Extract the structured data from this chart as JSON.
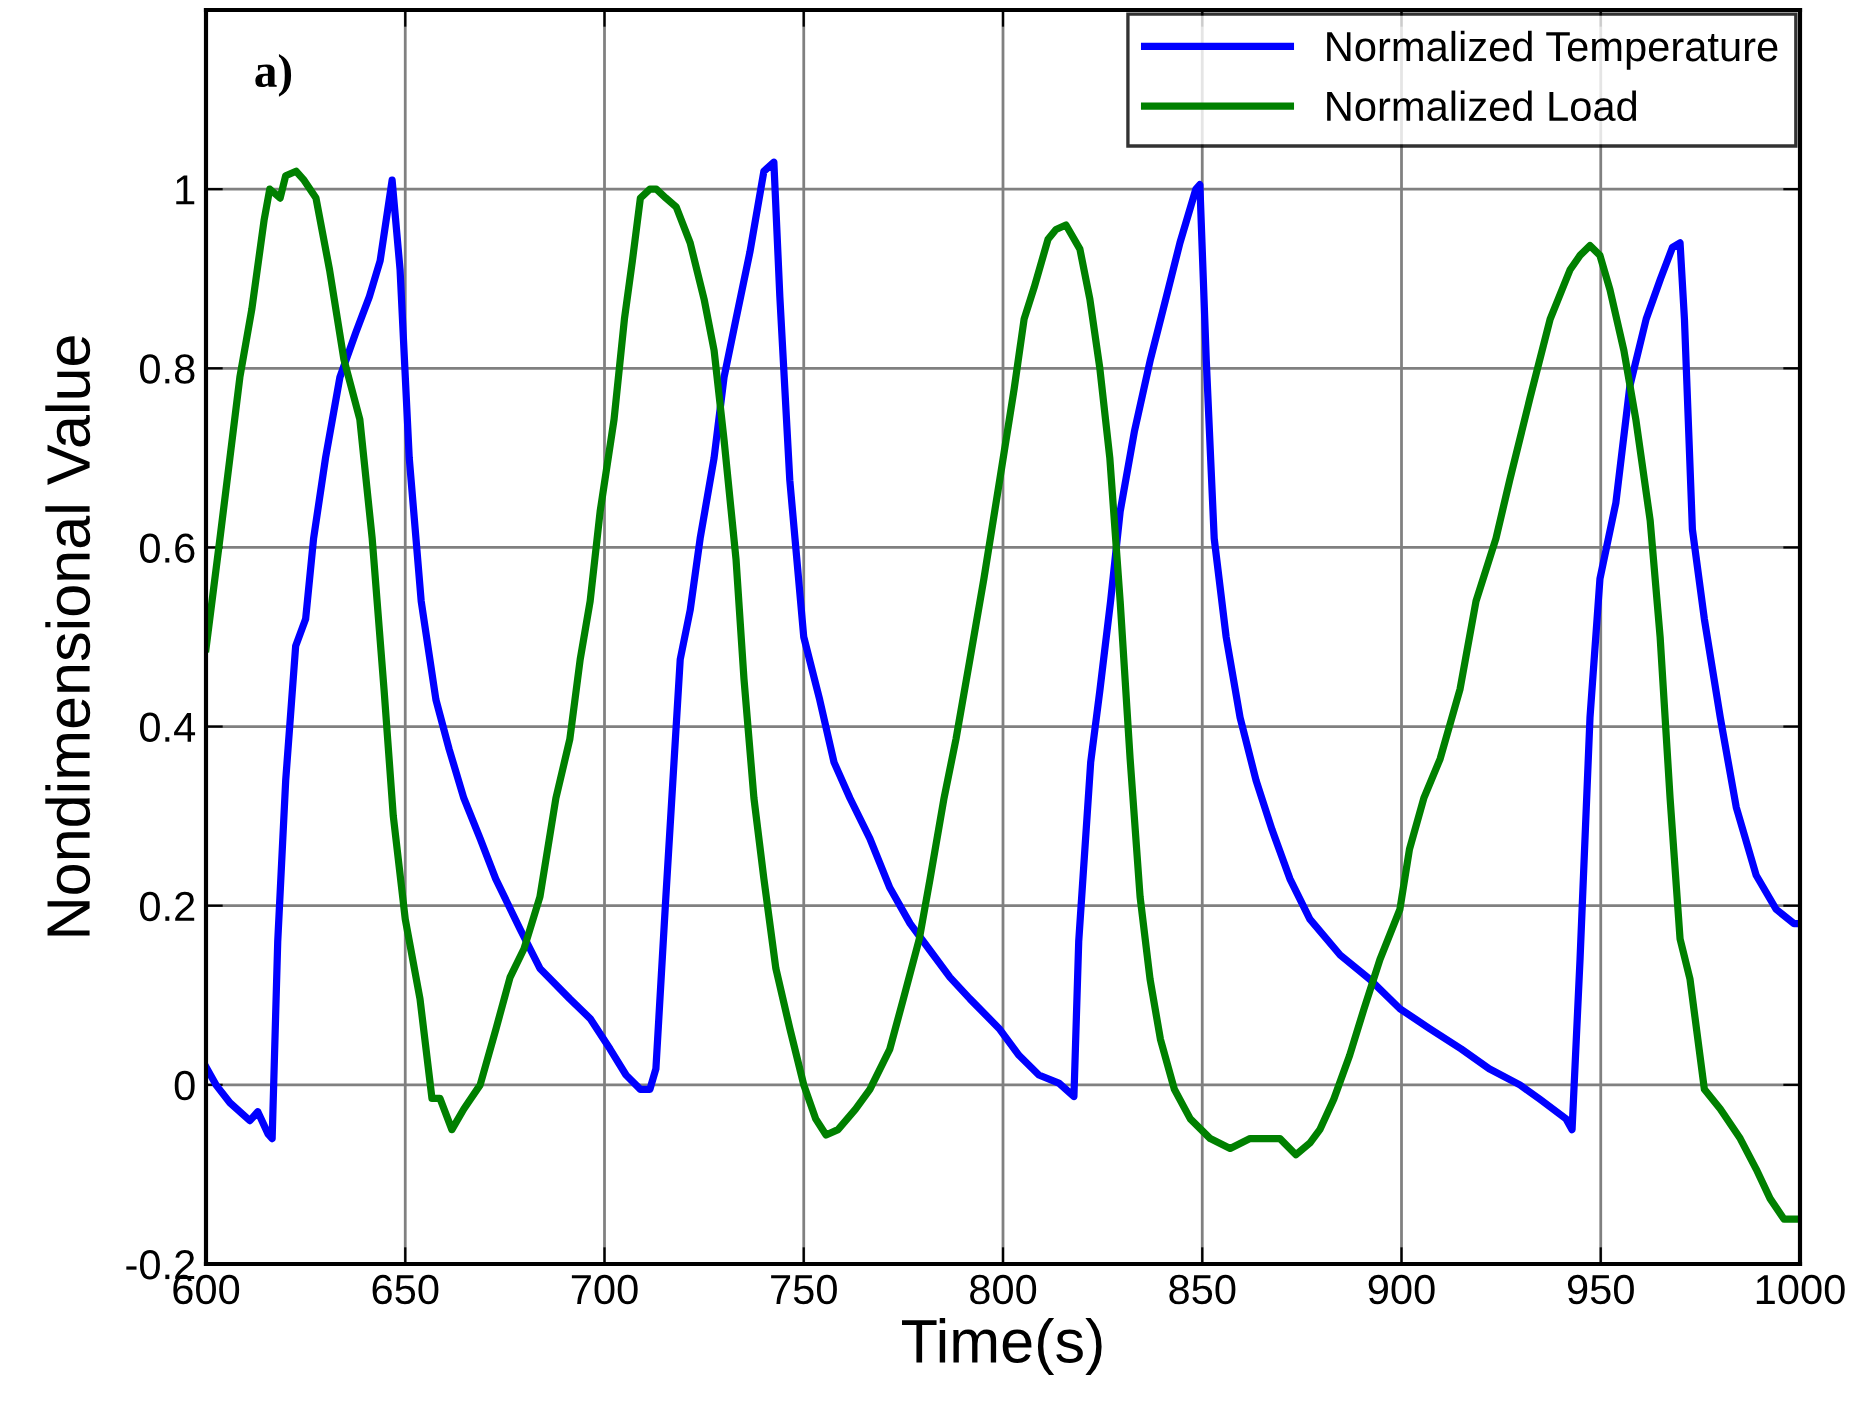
{
  "chart_data": {
    "type": "line",
    "xlabel": "Time(s)",
    "ylabel": "Nondimensional Value",
    "annotations": [
      "a)"
    ],
    "xlim": [
      600,
      1000
    ],
    "xticks": [
      600,
      650,
      700,
      750,
      800,
      850,
      900,
      950,
      1000
    ],
    "ylim": [
      -0.2,
      1.2
    ],
    "yticks": [
      -0.2,
      0,
      0.2,
      0.4,
      0.6,
      0.8,
      1
    ],
    "grid": true,
    "legend": "top right",
    "line_style": "solid",
    "marker": "none",
    "series": [
      {
        "name": "Normalized Temperature",
        "color": "#0000ff",
        "x": [
          600,
          602.5,
          606,
          611,
          613,
          615.6,
          616.6,
          618,
          620,
          622.5,
          625,
          627,
          630,
          633.6,
          637.6,
          641,
          643.7,
          646.7,
          648.7,
          651,
          654,
          657.7,
          661,
          664.7,
          668.8,
          672.7,
          678.8,
          683.8,
          691.3,
          696.4,
          701.4,
          705.4,
          709,
          711.4,
          712.9,
          715.4,
          719,
          721.5,
          724,
          727.5,
          730,
          733,
          736.5,
          740,
          742.5,
          744,
          746.5,
          750,
          754,
          757.6,
          761.6,
          766.6,
          771.6,
          776.7,
          781.7,
          786.7,
          791.7,
          799,
          804,
          809,
          814,
          817.8,
          819,
          822,
          824.3,
          827,
          829.4,
          833,
          837,
          841,
          844.4,
          848.4,
          849.4,
          851,
          853,
          856,
          859.5,
          863.5,
          867.5,
          872,
          877,
          884.6,
          892,
          899.6,
          907,
          915,
          922,
          929.7,
          934.7,
          941.3,
          942.8,
          944.8,
          947.3,
          949.8,
          953.8,
          957.3,
          961.4,
          965,
          968,
          969.9,
          971,
          973,
          976,
          980,
          984,
          989,
          994,
          998.5,
          1000
        ],
        "values": [
          0.02,
          0.0,
          -0.02,
          -0.04,
          -0.03,
          -0.055,
          -0.06,
          0.16,
          0.34,
          0.49,
          0.52,
          0.61,
          0.7,
          0.79,
          0.84,
          0.88,
          0.92,
          1.01,
          0.91,
          0.7,
          0.54,
          0.43,
          0.375,
          0.32,
          0.275,
          0.23,
          0.174,
          0.13,
          0.096,
          0.074,
          0.04,
          0.011,
          -0.005,
          -0.005,
          0.018,
          0.21,
          0.475,
          0.53,
          0.61,
          0.7,
          0.79,
          0.855,
          0.93,
          1.02,
          1.03,
          0.88,
          0.675,
          0.5,
          0.43,
          0.36,
          0.32,
          0.275,
          0.22,
          0.18,
          0.15,
          0.12,
          0.096,
          0.063,
          0.033,
          0.011,
          0.002,
          -0.013,
          0.16,
          0.36,
          0.44,
          0.54,
          0.64,
          0.73,
          0.81,
          0.88,
          0.94,
          1.0,
          1.005,
          0.81,
          0.61,
          0.5,
          0.41,
          0.34,
          0.285,
          0.23,
          0.185,
          0.145,
          0.118,
          0.085,
          0.063,
          0.04,
          0.018,
          0.0,
          -0.016,
          -0.038,
          -0.05,
          0.14,
          0.41,
          0.565,
          0.65,
          0.78,
          0.855,
          0.9,
          0.935,
          0.94,
          0.855,
          0.62,
          0.52,
          0.41,
          0.31,
          0.234,
          0.196,
          0.18,
          0.18
        ]
      },
      {
        "name": "Normalized Load",
        "color": "#008000",
        "x": [
          600,
          603.5,
          606,
          608.5,
          611.5,
          614.6,
          616,
          618.6,
          620,
          622.6,
          624.6,
          627.6,
          631,
          634.6,
          638.6,
          641.7,
          644.7,
          647,
          650,
          653.7,
          656.7,
          658.7,
          661.7,
          664.7,
          668.8,
          672.8,
          676.3,
          679.8,
          683.8,
          687.8,
          691.3,
          693.9,
          696.4,
          698.9,
          702.4,
          705,
          707,
          709,
          711.4,
          713,
          715.4,
          718,
          721.5,
          725,
          727.5,
          730,
          733,
          735,
          737.5,
          740,
          743,
          746.5,
          750,
          753,
          755.6,
          758.6,
          763,
          766.6,
          771.6,
          775,
          779,
          781.7,
          785.2,
          788.2,
          791.7,
          795.2,
          799.2,
          802.8,
          805.3,
          807.8,
          811.3,
          813.3,
          815.8,
          819.3,
          821.8,
          824.3,
          826.8,
          829.4,
          831.9,
          834.4,
          836.9,
          839.5,
          843,
          847,
          852,
          857,
          862,
          869.5,
          873.5,
          877,
          879.5,
          883,
          887,
          890.6,
          894.6,
          899.6,
          902,
          905.6,
          909.7,
          914.7,
          918.7,
          923.7,
          927.2,
          932.2,
          937.3,
          942.3,
          944.8,
          947.3,
          949.8,
          952.3,
          955.8,
          958.8,
          962.4,
          964.9,
          967.4,
          969.9,
          972.4,
          976,
          980,
          985,
          989,
          992.5,
          996,
          1000
        ],
        "values": [
          0.487,
          0.61,
          0.7,
          0.79,
          0.866,
          0.966,
          1.0,
          0.99,
          1.015,
          1.02,
          1.01,
          0.99,
          0.91,
          0.81,
          0.743,
          0.61,
          0.44,
          0.3,
          0.185,
          0.096,
          -0.015,
          -0.015,
          -0.05,
          -0.027,
          0.0,
          0.063,
          0.12,
          0.152,
          0.21,
          0.32,
          0.386,
          0.475,
          0.54,
          0.64,
          0.743,
          0.855,
          0.92,
          0.99,
          1.0,
          1.0,
          0.99,
          0.98,
          0.94,
          0.877,
          0.82,
          0.72,
          0.587,
          0.453,
          0.32,
          0.23,
          0.13,
          0.063,
          0.0,
          -0.038,
          -0.056,
          -0.05,
          -0.027,
          -0.005,
          0.04,
          0.096,
          0.163,
          0.23,
          0.32,
          0.386,
          0.475,
          0.565,
          0.676,
          0.777,
          0.855,
          0.89,
          0.944,
          0.955,
          0.96,
          0.933,
          0.877,
          0.8,
          0.7,
          0.54,
          0.364,
          0.21,
          0.118,
          0.051,
          -0.005,
          -0.038,
          -0.06,
          -0.071,
          -0.06,
          -0.06,
          -0.078,
          -0.065,
          -0.05,
          -0.016,
          0.033,
          0.085,
          0.14,
          0.196,
          0.263,
          0.32,
          0.364,
          0.442,
          0.54,
          0.61,
          0.676,
          0.766,
          0.855,
          0.91,
          0.926,
          0.937,
          0.926,
          0.888,
          0.82,
          0.743,
          0.63,
          0.5,
          0.32,
          0.163,
          0.118,
          -0.005,
          -0.027,
          -0.06,
          -0.094,
          -0.127,
          -0.15,
          -0.15
        ]
      }
    ]
  }
}
